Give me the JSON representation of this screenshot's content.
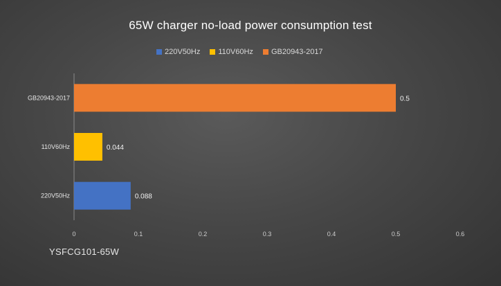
{
  "chart_data": {
    "type": "bar",
    "orientation": "horizontal",
    "title": "65W charger no-load power consumption test",
    "subtitle": "YSFCG101-65W",
    "categories": [
      "GB20943-2017",
      "110V60Hz",
      "220V50Hz"
    ],
    "values": [
      0.5,
      0.044,
      0.088
    ],
    "value_labels": [
      "0.5",
      "0.044",
      "0.088"
    ],
    "bar_colors": [
      "#ed7d31",
      "#ffc000",
      "#4472c4"
    ],
    "legend": [
      {
        "name": "220V50Hz",
        "color": "#4472c4"
      },
      {
        "name": "110V60Hz",
        "color": "#ffc000"
      },
      {
        "name": "GB20943-2017",
        "color": "#ed7d31"
      }
    ],
    "legend_position": "top",
    "xlim": [
      0,
      0.6
    ],
    "xticks": [
      0,
      0.1,
      0.2,
      0.3,
      0.4,
      0.5,
      0.6
    ],
    "xtick_labels": [
      "0",
      "0.1",
      "0.2",
      "0.3",
      "0.4",
      "0.5",
      "0.6"
    ],
    "grid": false
  }
}
